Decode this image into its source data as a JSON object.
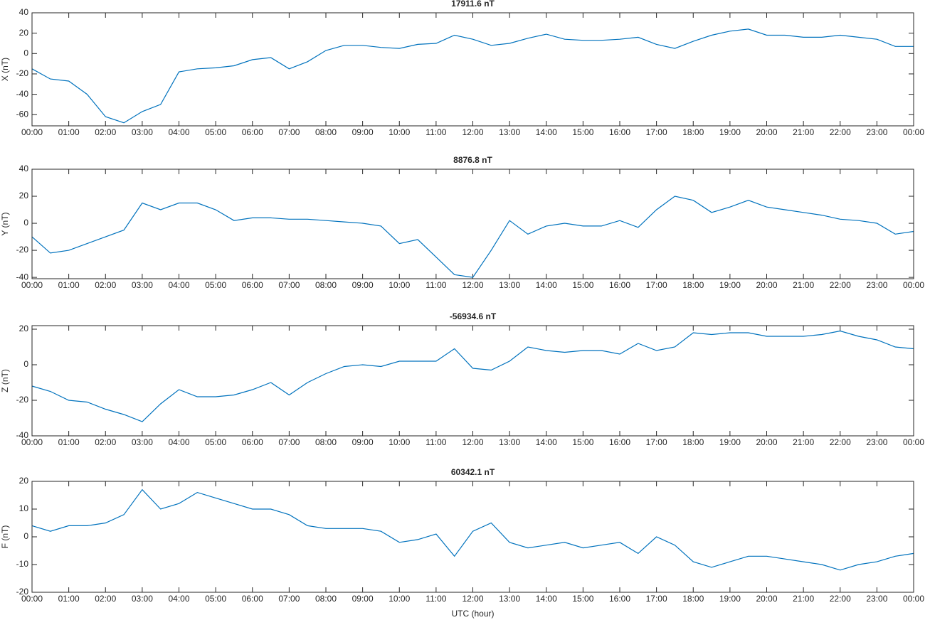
{
  "chart_data": [
    {
      "type": "line",
      "title": "17911.6 nT",
      "ylabel": "X (nT)",
      "color": "#0072bd",
      "x": [
        0,
        0.5,
        1,
        1.5,
        2,
        2.5,
        3,
        3.5,
        4,
        4.5,
        5,
        5.5,
        6,
        6.5,
        7,
        7.5,
        8,
        8.5,
        9,
        9.5,
        10,
        10.5,
        11,
        11.5,
        12,
        12.5,
        13,
        13.5,
        14,
        14.5,
        15,
        15.5,
        16,
        16.5,
        17,
        17.5,
        18,
        18.5,
        19,
        19.5,
        20,
        20.5,
        21,
        21.5,
        22,
        22.5,
        23,
        23.5,
        24
      ],
      "values": [
        -15,
        -25,
        -27,
        -40,
        -62,
        -68,
        -57,
        -50,
        -18,
        -15,
        -14,
        -12,
        -6,
        -4,
        -15,
        -8,
        3,
        8,
        8,
        6,
        5,
        9,
        10,
        18,
        14,
        8,
        10,
        15,
        19,
        14,
        13,
        13,
        14,
        16,
        9,
        5,
        12,
        18,
        22,
        24,
        18,
        18,
        16,
        16,
        18,
        16,
        14,
        7,
        7
      ],
      "xlim": [
        0,
        24
      ],
      "ylim": [
        -71,
        40
      ],
      "yticks": [
        -60,
        -40,
        -20,
        0,
        20,
        40
      ],
      "xticks": [
        {
          "value": 0,
          "label": "00:00"
        },
        {
          "value": 1,
          "label": "01:00"
        },
        {
          "value": 2,
          "label": "02:00"
        },
        {
          "value": 3,
          "label": "03:00"
        },
        {
          "value": 4,
          "label": "04:00"
        },
        {
          "value": 5,
          "label": "05:00"
        },
        {
          "value": 6,
          "label": "06:00"
        },
        {
          "value": 7,
          "label": "07:00"
        },
        {
          "value": 8,
          "label": "08:00"
        },
        {
          "value": 9,
          "label": "09:00"
        },
        {
          "value": 10,
          "label": "10:00"
        },
        {
          "value": 11,
          "label": "11:00"
        },
        {
          "value": 12,
          "label": "12:00"
        },
        {
          "value": 13,
          "label": "13:00"
        },
        {
          "value": 14,
          "label": "14:00"
        },
        {
          "value": 15,
          "label": "15:00"
        },
        {
          "value": 16,
          "label": "16:00"
        },
        {
          "value": 17,
          "label": "17:00"
        },
        {
          "value": 18,
          "label": "18:00"
        },
        {
          "value": 19,
          "label": "19:00"
        },
        {
          "value": 20,
          "label": "20:00"
        },
        {
          "value": 21,
          "label": "21:00"
        },
        {
          "value": 22,
          "label": "22:00"
        },
        {
          "value": 23,
          "label": "23:00"
        },
        {
          "value": 24,
          "label": "00:00"
        }
      ]
    },
    {
      "type": "line",
      "title": "8876.8 nT",
      "ylabel": "Y (nT)",
      "color": "#0072bd",
      "x": [
        0,
        0.5,
        1,
        1.5,
        2,
        2.5,
        3,
        3.5,
        4,
        4.5,
        5,
        5.5,
        6,
        6.5,
        7,
        7.5,
        8,
        8.5,
        9,
        9.5,
        10,
        10.5,
        11,
        11.5,
        12,
        12.5,
        13,
        13.5,
        14,
        14.5,
        15,
        15.5,
        16,
        16.5,
        17,
        17.5,
        18,
        18.5,
        19,
        19.5,
        20,
        20.5,
        21,
        21.5,
        22,
        22.5,
        23,
        23.5,
        24
      ],
      "values": [
        -10,
        -22,
        -20,
        -15,
        -10,
        -5,
        15,
        10,
        15,
        15,
        10,
        2,
        4,
        4,
        3,
        3,
        2,
        1,
        0,
        -2,
        -15,
        -12,
        -25,
        -38,
        -40,
        -20,
        2,
        -8,
        -2,
        0,
        -2,
        -2,
        2,
        -3,
        10,
        20,
        17,
        8,
        12,
        17,
        12,
        10,
        8,
        6,
        3,
        2,
        0,
        -8,
        -6
      ],
      "xlim": [
        0,
        24
      ],
      "ylim": [
        -41,
        40
      ],
      "yticks": [
        -40,
        -20,
        0,
        20,
        40
      ],
      "xticks": [
        {
          "value": 0,
          "label": "00:00"
        },
        {
          "value": 1,
          "label": "01:00"
        },
        {
          "value": 2,
          "label": "02:00"
        },
        {
          "value": 3,
          "label": "03:00"
        },
        {
          "value": 4,
          "label": "04:00"
        },
        {
          "value": 5,
          "label": "05:00"
        },
        {
          "value": 6,
          "label": "06:00"
        },
        {
          "value": 7,
          "label": "07:00"
        },
        {
          "value": 8,
          "label": "08:00"
        },
        {
          "value": 9,
          "label": "09:00"
        },
        {
          "value": 10,
          "label": "10:00"
        },
        {
          "value": 11,
          "label": "11:00"
        },
        {
          "value": 12,
          "label": "12:00"
        },
        {
          "value": 13,
          "label": "13:00"
        },
        {
          "value": 14,
          "label": "14:00"
        },
        {
          "value": 15,
          "label": "15:00"
        },
        {
          "value": 16,
          "label": "16:00"
        },
        {
          "value": 17,
          "label": "17:00"
        },
        {
          "value": 18,
          "label": "18:00"
        },
        {
          "value": 19,
          "label": "19:00"
        },
        {
          "value": 20,
          "label": "20:00"
        },
        {
          "value": 21,
          "label": "21:00"
        },
        {
          "value": 22,
          "label": "22:00"
        },
        {
          "value": 23,
          "label": "23:00"
        },
        {
          "value": 24,
          "label": "00:00"
        }
      ]
    },
    {
      "type": "line",
      "title": "-56934.6 nT",
      "ylabel": "Z (nT)",
      "color": "#0072bd",
      "x": [
        0,
        0.5,
        1,
        1.5,
        2,
        2.5,
        3,
        3.5,
        4,
        4.5,
        5,
        5.5,
        6,
        6.5,
        7,
        7.5,
        8,
        8.5,
        9,
        9.5,
        10,
        10.5,
        11,
        11.5,
        12,
        12.5,
        13,
        13.5,
        14,
        14.5,
        15,
        15.5,
        16,
        16.5,
        17,
        17.5,
        18,
        18.5,
        19,
        19.5,
        20,
        20.5,
        21,
        21.5,
        22,
        22.5,
        23,
        23.5,
        24
      ],
      "values": [
        -12,
        -15,
        -20,
        -21,
        -25,
        -28,
        -32,
        -22,
        -14,
        -18,
        -18,
        -17,
        -14,
        -10,
        -17,
        -10,
        -5,
        -1,
        0,
        -1,
        2,
        2,
        2,
        9,
        -2,
        -3,
        2,
        10,
        8,
        7,
        8,
        8,
        6,
        12,
        8,
        10,
        18,
        17,
        18,
        18,
        16,
        16,
        16,
        17,
        19,
        16,
        14,
        10,
        9
      ],
      "xlim": [
        0,
        24
      ],
      "ylim": [
        -40,
        22
      ],
      "yticks": [
        -40,
        -20,
        0,
        20
      ],
      "xticks": [
        {
          "value": 0,
          "label": "00:00"
        },
        {
          "value": 1,
          "label": "01:00"
        },
        {
          "value": 2,
          "label": "02:00"
        },
        {
          "value": 3,
          "label": "03:00"
        },
        {
          "value": 4,
          "label": "04:00"
        },
        {
          "value": 5,
          "label": "05:00"
        },
        {
          "value": 6,
          "label": "06:00"
        },
        {
          "value": 7,
          "label": "07:00"
        },
        {
          "value": 8,
          "label": "08:00"
        },
        {
          "value": 9,
          "label": "09:00"
        },
        {
          "value": 10,
          "label": "10:00"
        },
        {
          "value": 11,
          "label": "11:00"
        },
        {
          "value": 12,
          "label": "12:00"
        },
        {
          "value": 13,
          "label": "13:00"
        },
        {
          "value": 14,
          "label": "14:00"
        },
        {
          "value": 15,
          "label": "15:00"
        },
        {
          "value": 16,
          "label": "16:00"
        },
        {
          "value": 17,
          "label": "17:00"
        },
        {
          "value": 18,
          "label": "18:00"
        },
        {
          "value": 19,
          "label": "19:00"
        },
        {
          "value": 20,
          "label": "20:00"
        },
        {
          "value": 21,
          "label": "21:00"
        },
        {
          "value": 22,
          "label": "22:00"
        },
        {
          "value": 23,
          "label": "23:00"
        },
        {
          "value": 24,
          "label": "00:00"
        }
      ]
    },
    {
      "type": "line",
      "title": "60342.1 nT",
      "ylabel": "F (nT)",
      "xlabel": "UTC (hour)",
      "color": "#0072bd",
      "x": [
        0,
        0.5,
        1,
        1.5,
        2,
        2.5,
        3,
        3.5,
        4,
        4.5,
        5,
        5.5,
        6,
        6.5,
        7,
        7.5,
        8,
        8.5,
        9,
        9.5,
        10,
        10.5,
        11,
        11.5,
        12,
        12.5,
        13,
        13.5,
        14,
        14.5,
        15,
        15.5,
        16,
        16.5,
        17,
        17.5,
        18,
        18.5,
        19,
        19.5,
        20,
        20.5,
        21,
        21.5,
        22,
        22.5,
        23,
        23.5,
        24
      ],
      "values": [
        4,
        2,
        4,
        4,
        5,
        8,
        17,
        10,
        12,
        16,
        14,
        12,
        10,
        10,
        8,
        4,
        3,
        3,
        3,
        2,
        -2,
        -1,
        1,
        -7,
        2,
        5,
        -2,
        -4,
        -3,
        -2,
        -4,
        -3,
        -2,
        -6,
        0,
        -3,
        -9,
        -11,
        -9,
        -7,
        -7,
        -8,
        -9,
        -10,
        -12,
        -10,
        -9,
        -7,
        -6
      ],
      "xlim": [
        0,
        24
      ],
      "ylim": [
        -20,
        20
      ],
      "yticks": [
        -20,
        -10,
        0,
        10,
        20
      ],
      "xticks": [
        {
          "value": 0,
          "label": "00:00"
        },
        {
          "value": 1,
          "label": "01:00"
        },
        {
          "value": 2,
          "label": "02:00"
        },
        {
          "value": 3,
          "label": "03:00"
        },
        {
          "value": 4,
          "label": "04:00"
        },
        {
          "value": 5,
          "label": "05:00"
        },
        {
          "value": 6,
          "label": "06:00"
        },
        {
          "value": 7,
          "label": "07:00"
        },
        {
          "value": 8,
          "label": "08:00"
        },
        {
          "value": 9,
          "label": "09:00"
        },
        {
          "value": 10,
          "label": "10:00"
        },
        {
          "value": 11,
          "label": "11:00"
        },
        {
          "value": 12,
          "label": "12:00"
        },
        {
          "value": 13,
          "label": "13:00"
        },
        {
          "value": 14,
          "label": "14:00"
        },
        {
          "value": 15,
          "label": "15:00"
        },
        {
          "value": 16,
          "label": "16:00"
        },
        {
          "value": 17,
          "label": "17:00"
        },
        {
          "value": 18,
          "label": "18:00"
        },
        {
          "value": 19,
          "label": "19:00"
        },
        {
          "value": 20,
          "label": "20:00"
        },
        {
          "value": 21,
          "label": "21:00"
        },
        {
          "value": 22,
          "label": "22:00"
        },
        {
          "value": 23,
          "label": "23:00"
        },
        {
          "value": 24,
          "label": "00:00"
        }
      ]
    }
  ]
}
